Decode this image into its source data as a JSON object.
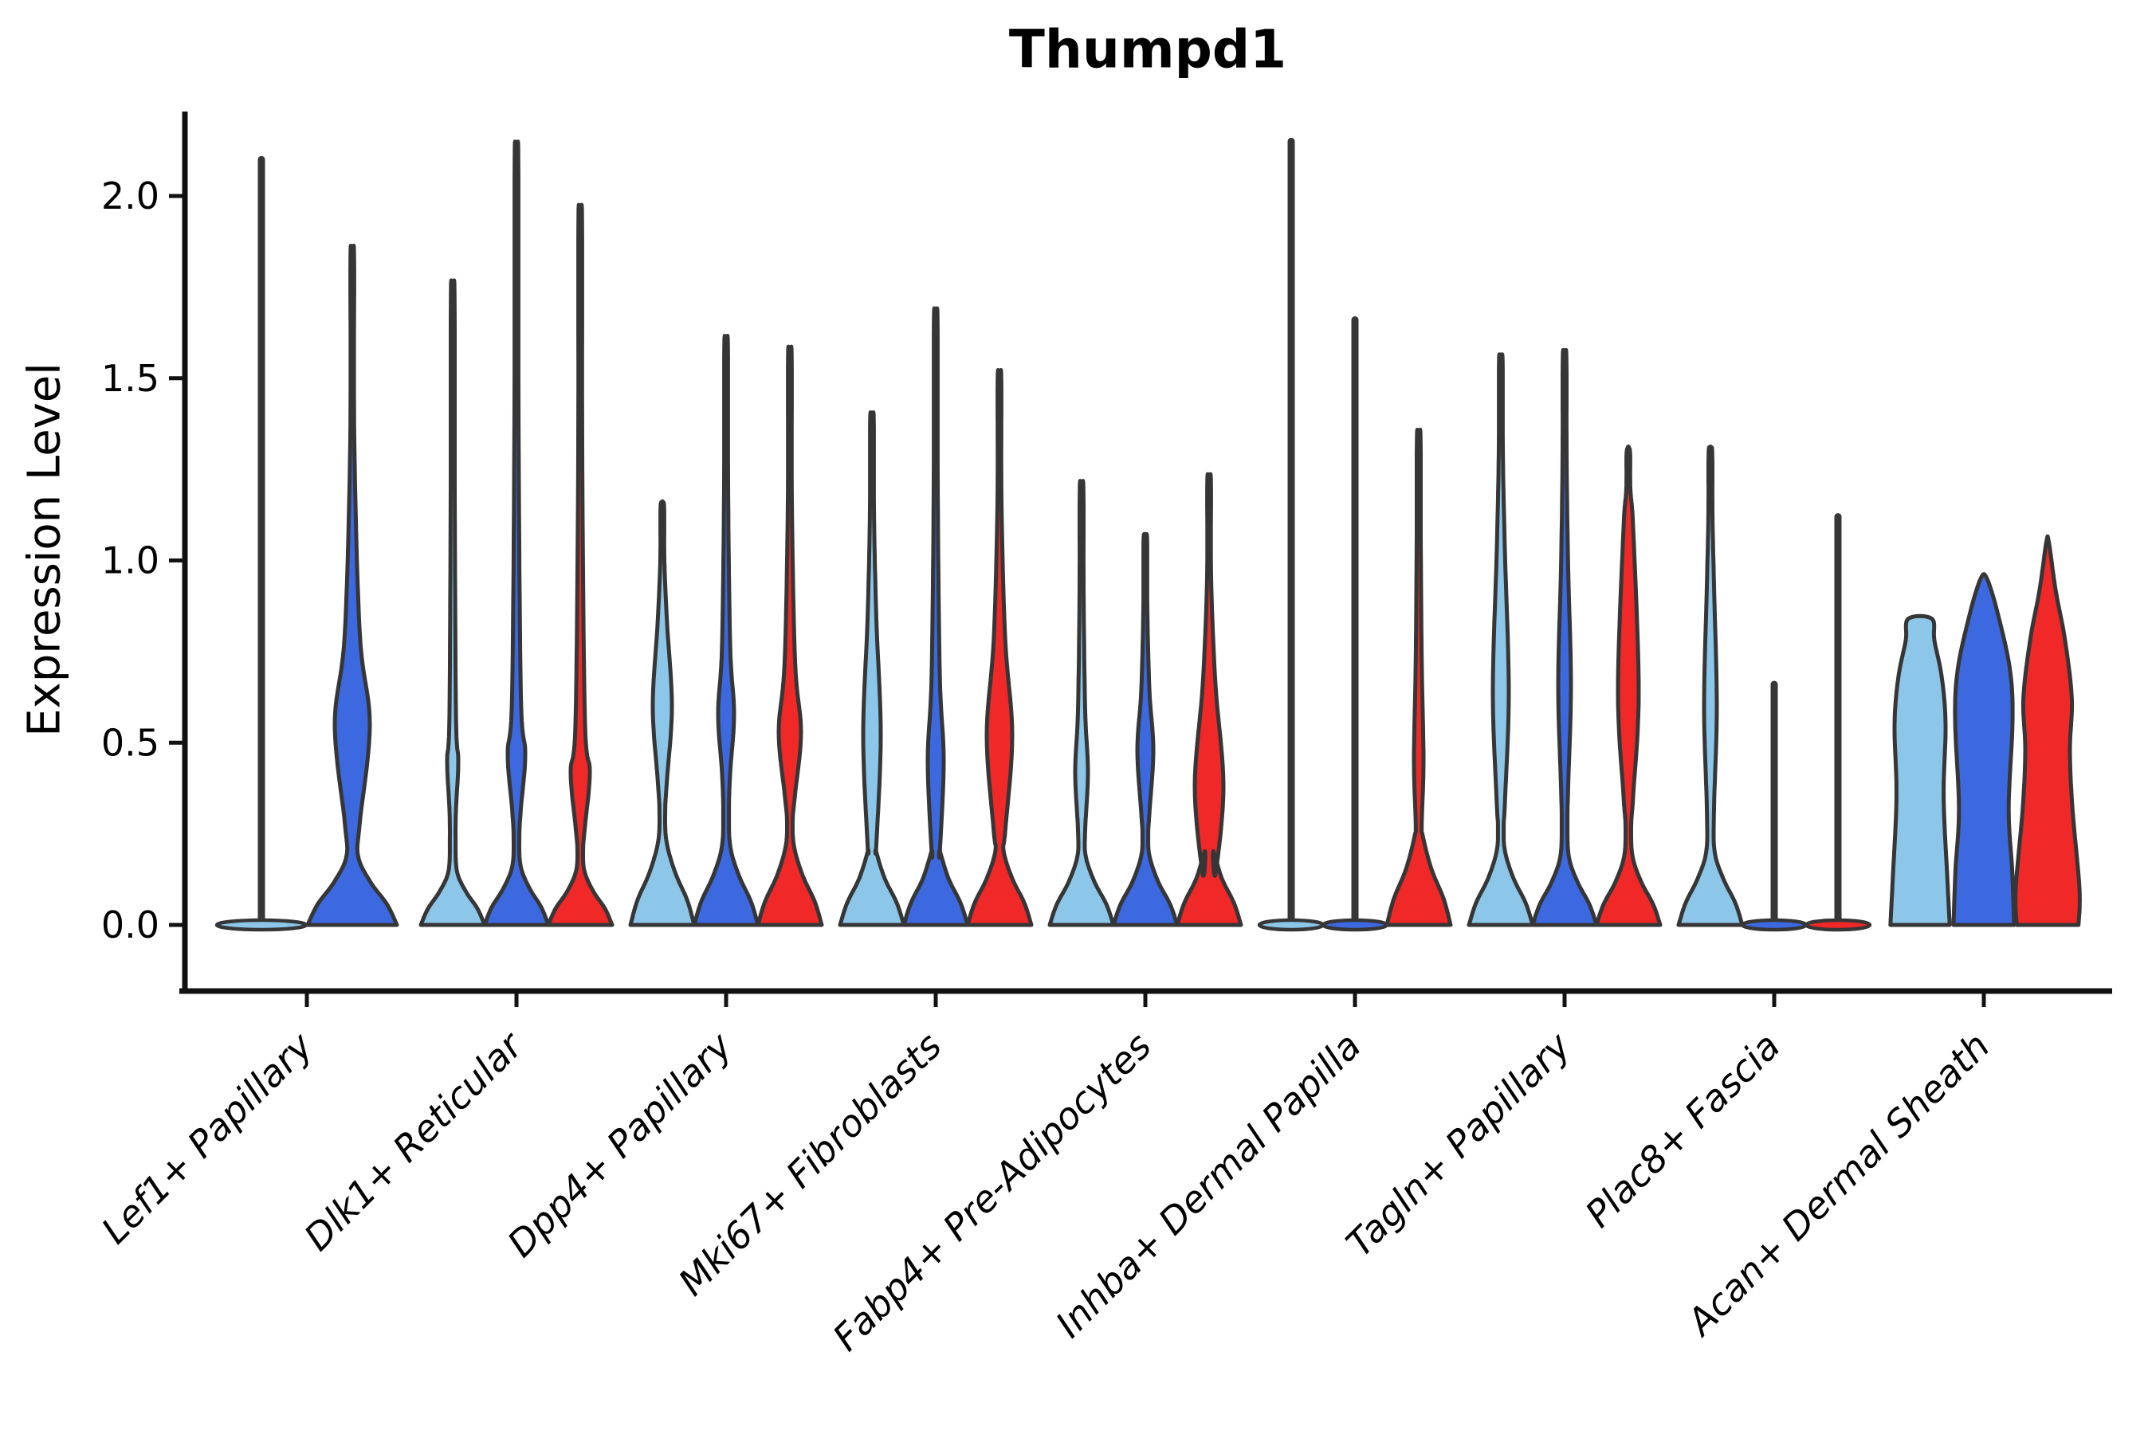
{
  "chart_data": {
    "type": "violin",
    "title": "Thumpd1",
    "ylabel": "Expression Level",
    "xlabel": "",
    "yticks": [
      0.0,
      0.5,
      1.0,
      1.5,
      2.0
    ],
    "ylim": [
      -0.17,
      2.23
    ],
    "grid": false,
    "legend": "none",
    "categories": [
      "Lef1+ Papillary",
      "Dlk1+ Reticular",
      "Dpp4+ Papillary",
      "Mki67+ Fibroblasts",
      "Fabp4+ Pre-Adipocytes",
      "Inhba+ Dermal Papilla",
      "Tagln+ Papillary",
      "Plac8+ Fascia",
      "Acan+ Dermal Sheath"
    ],
    "series": [
      {
        "id": "series-1",
        "color": "#8CC7E9"
      },
      {
        "id": "series-2",
        "color": "#3C68E0"
      },
      {
        "id": "series-3",
        "color": "#F02828"
      }
    ],
    "outline_color": "#363636",
    "groups": [
      {
        "category": "Lef1+ Papillary",
        "violins": [
          {
            "s": 0,
            "shape": "flat",
            "top": 2.1,
            "hw": 56
          },
          {
            "s": 1,
            "shape": "violin",
            "top": 1.84,
            "hw": 56,
            "base_h": 0.14,
            "bulge": [
              0.28,
              0.55,
              0.8,
              22
            ]
          }
        ]
      },
      {
        "category": "Dlk1+ Reticular",
        "violins": [
          {
            "s": 0,
            "shape": "violin",
            "top": 1.74,
            "hw": 40,
            "base_h": 0.11,
            "bulge": [
              0.32,
              0.45,
              0.57,
              7
            ]
          },
          {
            "s": 1,
            "shape": "violin",
            "top": 2.11,
            "hw": 40,
            "base_h": 0.12,
            "bulge": [
              0.32,
              0.47,
              0.63,
              11
            ]
          },
          {
            "s": 2,
            "shape": "violin",
            "top": 1.94,
            "hw": 40,
            "base_h": 0.11,
            "bulge": [
              0.27,
              0.42,
              0.56,
              12
            ]
          }
        ]
      },
      {
        "category": "Dpp4+ Papillary",
        "violins": [
          {
            "s": 0,
            "shape": "violin",
            "top": 1.16,
            "hw": 40,
            "base_h": 0.17,
            "bulge": [
              0.4,
              0.6,
              0.83,
              12
            ]
          },
          {
            "s": 1,
            "shape": "violin",
            "top": 1.6,
            "hw": 40,
            "base_h": 0.16,
            "bulge": [
              0.42,
              0.58,
              0.76,
              10
            ]
          },
          {
            "s": 2,
            "shape": "violin",
            "top": 1.57,
            "hw": 40,
            "base_h": 0.16,
            "bulge": [
              0.36,
              0.53,
              0.72,
              14
            ]
          }
        ]
      },
      {
        "category": "Mki67+ Fibroblasts",
        "violins": [
          {
            "s": 0,
            "shape": "violin",
            "top": 1.4,
            "hw": 40,
            "base_h": 0.15,
            "bulge": [
              0.22,
              0.52,
              0.84,
              11
            ]
          },
          {
            "s": 1,
            "shape": "violin",
            "top": 1.67,
            "hw": 40,
            "base_h": 0.15,
            "bulge": [
              0.2,
              0.45,
              0.68,
              10
            ]
          },
          {
            "s": 2,
            "shape": "violin",
            "top": 1.51,
            "hw": 40,
            "base_h": 0.15,
            "bulge": [
              0.26,
              0.52,
              0.78,
              16
            ]
          }
        ]
      },
      {
        "category": "Fabp4+ Pre-Adipocytes",
        "violins": [
          {
            "s": 0,
            "shape": "violin",
            "top": 1.21,
            "hw": 40,
            "base_h": 0.14,
            "bulge": [
              0.26,
              0.42,
              0.59,
              8
            ]
          },
          {
            "s": 1,
            "shape": "violin",
            "top": 1.07,
            "hw": 40,
            "base_h": 0.14,
            "bulge": [
              0.31,
              0.48,
              0.64,
              10
            ]
          },
          {
            "s": 2,
            "shape": "violin",
            "top": 1.23,
            "hw": 40,
            "base_h": 0.15,
            "bulge": [
              0.14,
              0.38,
              0.66,
              18
            ]
          }
        ]
      },
      {
        "category": "Inhba+ Dermal Papilla",
        "violins": [
          {
            "s": 0,
            "shape": "flat",
            "top": 2.15,
            "hw": 40
          },
          {
            "s": 1,
            "shape": "flat",
            "top": 1.66,
            "hw": 40
          },
          {
            "s": 2,
            "shape": "violin",
            "top": 1.35,
            "hw": 40,
            "base_h": 0.18,
            "bulge": [
              0.28,
              0.45,
              0.72,
              6
            ]
          }
        ]
      },
      {
        "category": "Tagln+ Papillary",
        "violins": [
          {
            "s": 0,
            "shape": "violin",
            "top": 1.56,
            "hw": 40,
            "base_h": 0.15,
            "bulge": [
              0.34,
              0.64,
              1.02,
              10
            ]
          },
          {
            "s": 1,
            "shape": "violin",
            "top": 1.57,
            "hw": 40,
            "base_h": 0.14,
            "bulge": [
              0.38,
              0.66,
              0.98,
              8
            ]
          },
          {
            "s": 2,
            "shape": "violin",
            "top": 1.31,
            "hw": 40,
            "base_h": 0.14,
            "bulge": [
              0.36,
              0.64,
              1.08,
              13
            ]
          }
        ]
      },
      {
        "category": "Plac8+ Fascia",
        "violins": [
          {
            "s": 0,
            "shape": "violin",
            "top": 1.31,
            "hw": 40,
            "base_h": 0.15,
            "bulge": [
              0.32,
              0.6,
              0.93,
              8
            ]
          },
          {
            "s": 1,
            "shape": "flat",
            "top": 0.66,
            "hw": 40
          },
          {
            "s": 2,
            "shape": "flat",
            "top": 1.12,
            "hw": 40
          }
        ]
      },
      {
        "category": "Acan+ Dermal Sheath",
        "violins": [
          {
            "s": 0,
            "shape": "column",
            "top": 0.84,
            "hw": 40,
            "flat_top": true,
            "profile": [
              [
                0,
                0.93
              ],
              [
                0.12,
                0.86
              ],
              [
                0.35,
                0.74
              ],
              [
                0.55,
                0.8
              ],
              [
                0.68,
                0.68
              ],
              [
                0.78,
                0.45
              ],
              [
                0.84,
                0.37
              ]
            ]
          },
          {
            "s": 1,
            "shape": "column",
            "top": 0.95,
            "hw": 40,
            "flat_top": false,
            "profile": [
              [
                0,
                0.95
              ],
              [
                0.15,
                0.89
              ],
              [
                0.32,
                0.78
              ],
              [
                0.56,
                0.9
              ],
              [
                0.7,
                0.82
              ],
              [
                0.85,
                0.45
              ],
              [
                0.95,
                0.1
              ]
            ]
          },
          {
            "s": 2,
            "shape": "column",
            "top": 1.05,
            "hw": 40,
            "flat_top": false,
            "profile": [
              [
                0,
                0.97
              ],
              [
                0.1,
                1.0
              ],
              [
                0.32,
                0.78
              ],
              [
                0.48,
                0.7
              ],
              [
                0.62,
                0.76
              ],
              [
                0.78,
                0.55
              ],
              [
                0.92,
                0.25
              ],
              [
                1.05,
                0.04
              ]
            ]
          }
        ]
      }
    ]
  }
}
